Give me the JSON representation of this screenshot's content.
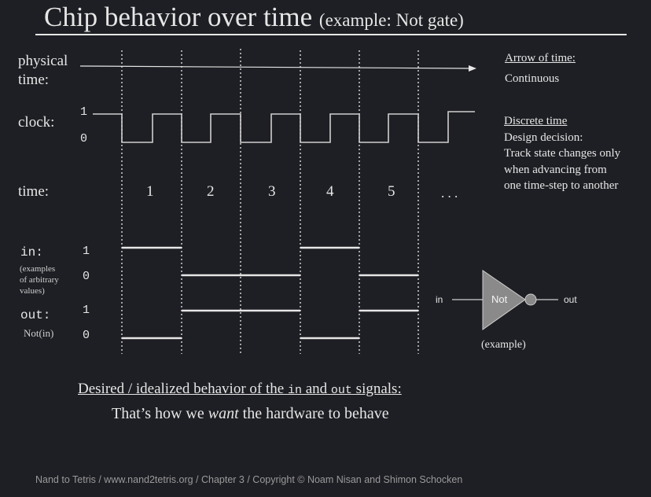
{
  "title": {
    "main": "Chip behavior over time",
    "sub": "(example: Not gate)"
  },
  "rows": {
    "physical_time": "physical",
    "physical_time_2": "time:",
    "clock": "clock:",
    "clock_1": "1",
    "clock_0": "0",
    "time": "time:",
    "in": "in:",
    "in_note_1": "(examples",
    "in_note_2": "of arbitrary",
    "in_note_3": "values)",
    "in_1": "1",
    "in_0": "0",
    "out": "out:",
    "out_note": "Not(in)",
    "out_1": "1",
    "out_0": "0"
  },
  "time_steps": [
    "1",
    "2",
    "3",
    "4",
    "5",
    ". . ."
  ],
  "signals": {
    "clock_wave": "square",
    "in_values": [
      1,
      0,
      0,
      1,
      0
    ],
    "out_values": [
      0,
      1,
      1,
      0,
      1
    ]
  },
  "side": {
    "arrow_heading": "Arrow of time:",
    "arrow_text": "Continuous",
    "discrete_heading": "Discrete time",
    "discrete_1": "Design decision:",
    "discrete_2": "Track state changes only",
    "discrete_3": "when advancing from",
    "discrete_4": "one time-step to another"
  },
  "gate": {
    "in_label": "in",
    "name": "Not",
    "out_label": "out",
    "caption": "(example)"
  },
  "bottom": {
    "desired_a": "Desired / idealized behavior of the ",
    "code_in": "in",
    "and": " and ",
    "code_out": "out",
    "signals": " signals:",
    "want_a": "That’s how we ",
    "want_em": "want",
    "want_b": " the hardware to behave"
  },
  "footer": "Nand to Tetris / www.nand2tetris.org / Chapter 3 / Copyright © Noam Nisan and Shimon Schocken",
  "colors": {
    "background": "#1e1f24",
    "text": "#e6e6e6",
    "gate_fill": "#8a8a8a"
  }
}
